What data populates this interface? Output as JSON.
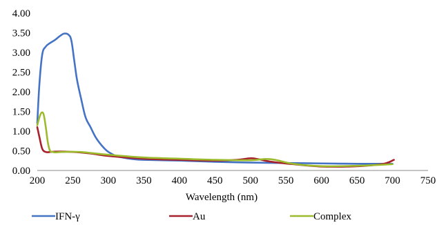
{
  "chart_data": {
    "type": "line",
    "title": "",
    "xlabel": "Wavelength (nm)",
    "ylabel": "",
    "xlim": [
      200,
      750
    ],
    "ylim": [
      0,
      4
    ],
    "x_ticks": [
      200,
      250,
      300,
      350,
      400,
      450,
      500,
      550,
      600,
      650,
      700,
      750
    ],
    "x_tick_labels": [
      "200",
      "250",
      "300",
      "350",
      "400",
      "450",
      "500",
      "550",
      "600",
      "650",
      "700",
      "750"
    ],
    "y_ticks": [
      0,
      0.5,
      1,
      1.5,
      2,
      2.5,
      3,
      3.5,
      4
    ],
    "y_tick_labels": [
      "0.00",
      "0.50",
      "1.00",
      "1.50",
      "2.00",
      "2.50",
      "3.00",
      "3.50",
      "4.00"
    ],
    "grid": false,
    "legend_position": "bottom",
    "series": [
      {
        "name": "IFN-γ",
        "color": "#4472C4",
        "x": [
          200,
          203,
          207,
          212,
          218,
          225,
          232,
          238,
          244,
          248,
          252,
          256,
          262,
          268,
          275,
          282,
          290,
          298,
          305,
          312,
          320,
          330,
          340,
          350,
          400,
          450,
          500,
          550,
          600,
          650,
          700
        ],
        "y": [
          1.2,
          2.2,
          2.95,
          3.15,
          3.24,
          3.32,
          3.42,
          3.48,
          3.45,
          3.3,
          2.8,
          2.3,
          1.8,
          1.35,
          1.1,
          0.85,
          0.65,
          0.5,
          0.42,
          0.36,
          0.33,
          0.3,
          0.28,
          0.27,
          0.25,
          0.22,
          0.2,
          0.19,
          0.18,
          0.17,
          0.17
        ]
      },
      {
        "name": "Au",
        "color": "#A8202B",
        "x": [
          200,
          203,
          207,
          212,
          218,
          225,
          240,
          260,
          280,
          300,
          350,
          400,
          450,
          480,
          500,
          510,
          530,
          560,
          600,
          640,
          670,
          690,
          702
        ],
        "y": [
          1.1,
          0.85,
          0.55,
          0.47,
          0.47,
          0.48,
          0.48,
          0.46,
          0.42,
          0.37,
          0.3,
          0.27,
          0.25,
          0.27,
          0.31,
          0.29,
          0.22,
          0.16,
          0.1,
          0.1,
          0.13,
          0.18,
          0.27
        ]
      },
      {
        "name": "Complex",
        "color": "#9BBB2C",
        "x": [
          200,
          203,
          206,
          209,
          212,
          215,
          218,
          222,
          226,
          235,
          260,
          300,
          350,
          400,
          450,
          500,
          520,
          535,
          560,
          600,
          650,
          700
        ],
        "y": [
          1.15,
          1.35,
          1.47,
          1.42,
          1.1,
          0.7,
          0.5,
          0.47,
          0.46,
          0.47,
          0.47,
          0.4,
          0.33,
          0.3,
          0.27,
          0.26,
          0.29,
          0.27,
          0.17,
          0.11,
          0.12,
          0.16
        ]
      }
    ]
  }
}
